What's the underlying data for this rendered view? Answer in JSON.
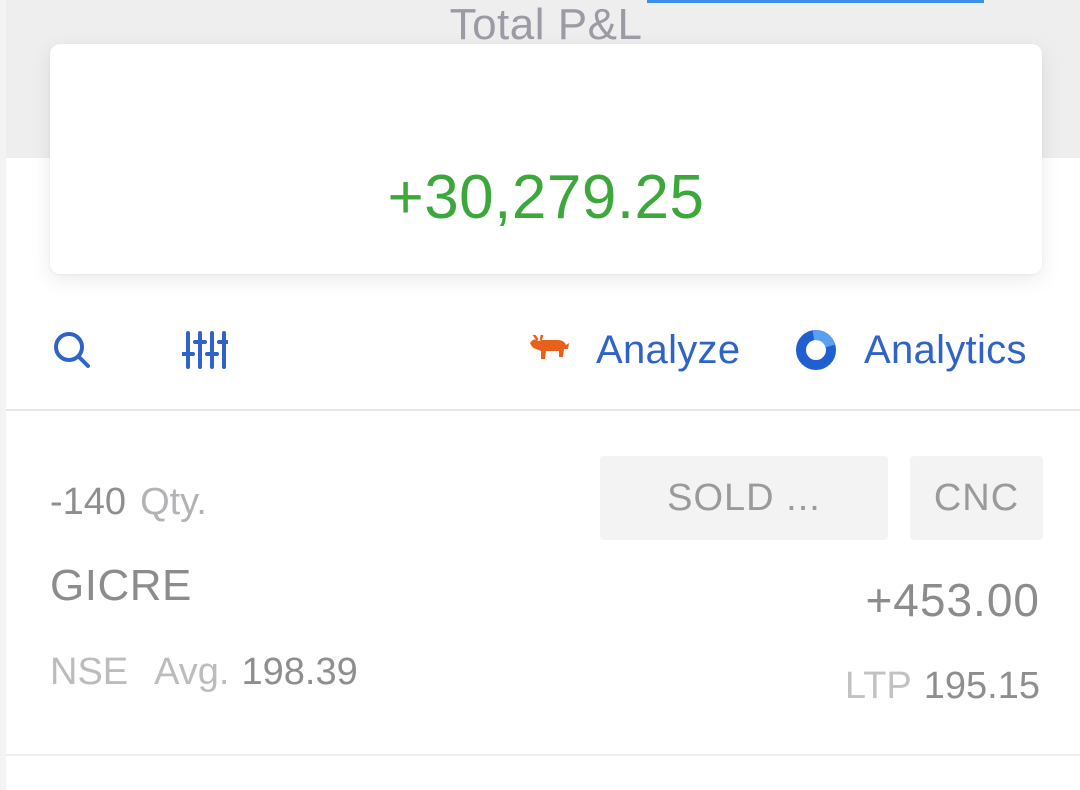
{
  "summary": {
    "label": "Total P&L",
    "value": "+30,279.25"
  },
  "toolbar": {
    "search_icon": "search-icon",
    "filter_icon": "sliders-icon",
    "analyze": {
      "icon": "bull-icon",
      "label": "Analyze"
    },
    "analytics": {
      "icon": "ring-icon",
      "label": "Analytics"
    }
  },
  "positions": [
    {
      "qty": "-140",
      "qty_unit": "Qty.",
      "status_tag": "SOLD ...",
      "product_tag": "CNC",
      "symbol": "GICRE",
      "pnl": "+453.00",
      "exchange": "NSE",
      "avg_label": "Avg.",
      "avg_value": "198.39",
      "ltp_label": "LTP",
      "ltp_value": "195.15"
    }
  ],
  "colors": {
    "profit": "#3ca83c",
    "link": "#2f63c8",
    "analyze_icon": "#e8601c",
    "muted_text": "#8c8c8e"
  }
}
